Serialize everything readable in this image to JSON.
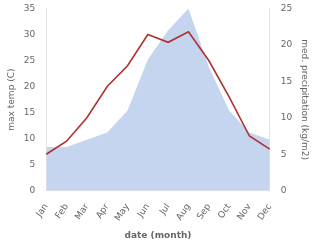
{
  "chart_data": {
    "type": "line",
    "xlabel": "date (month)",
    "ylabel": "max temp (C)",
    "y2label": "med. precipitation (kg/m2)",
    "categories": [
      "Jan",
      "Feb",
      "Mar",
      "Apr",
      "May",
      "Jun",
      "Jul",
      "Aug",
      "Sep",
      "Oct",
      "Nov",
      "Dec"
    ],
    "series": [
      {
        "type": "area",
        "axis": "y2",
        "color": "#c5d5f0",
        "values": [
          6,
          6,
          7,
          8,
          11,
          18,
          22,
          25,
          17,
          11,
          8,
          7
        ]
      },
      {
        "type": "line",
        "axis": "y",
        "color": "#b03030",
        "values": [
          7,
          9.5,
          14,
          20,
          24,
          30,
          28.5,
          30.5,
          25,
          18,
          10.5,
          8
        ]
      }
    ],
    "ylim": [
      0,
      35
    ],
    "yticks": [
      0,
      5,
      10,
      15,
      20,
      25,
      30,
      35
    ],
    "y2lim": [
      0,
      25
    ],
    "y2ticks": [
      0,
      5,
      10,
      15,
      20,
      25
    ],
    "grid": false
  }
}
